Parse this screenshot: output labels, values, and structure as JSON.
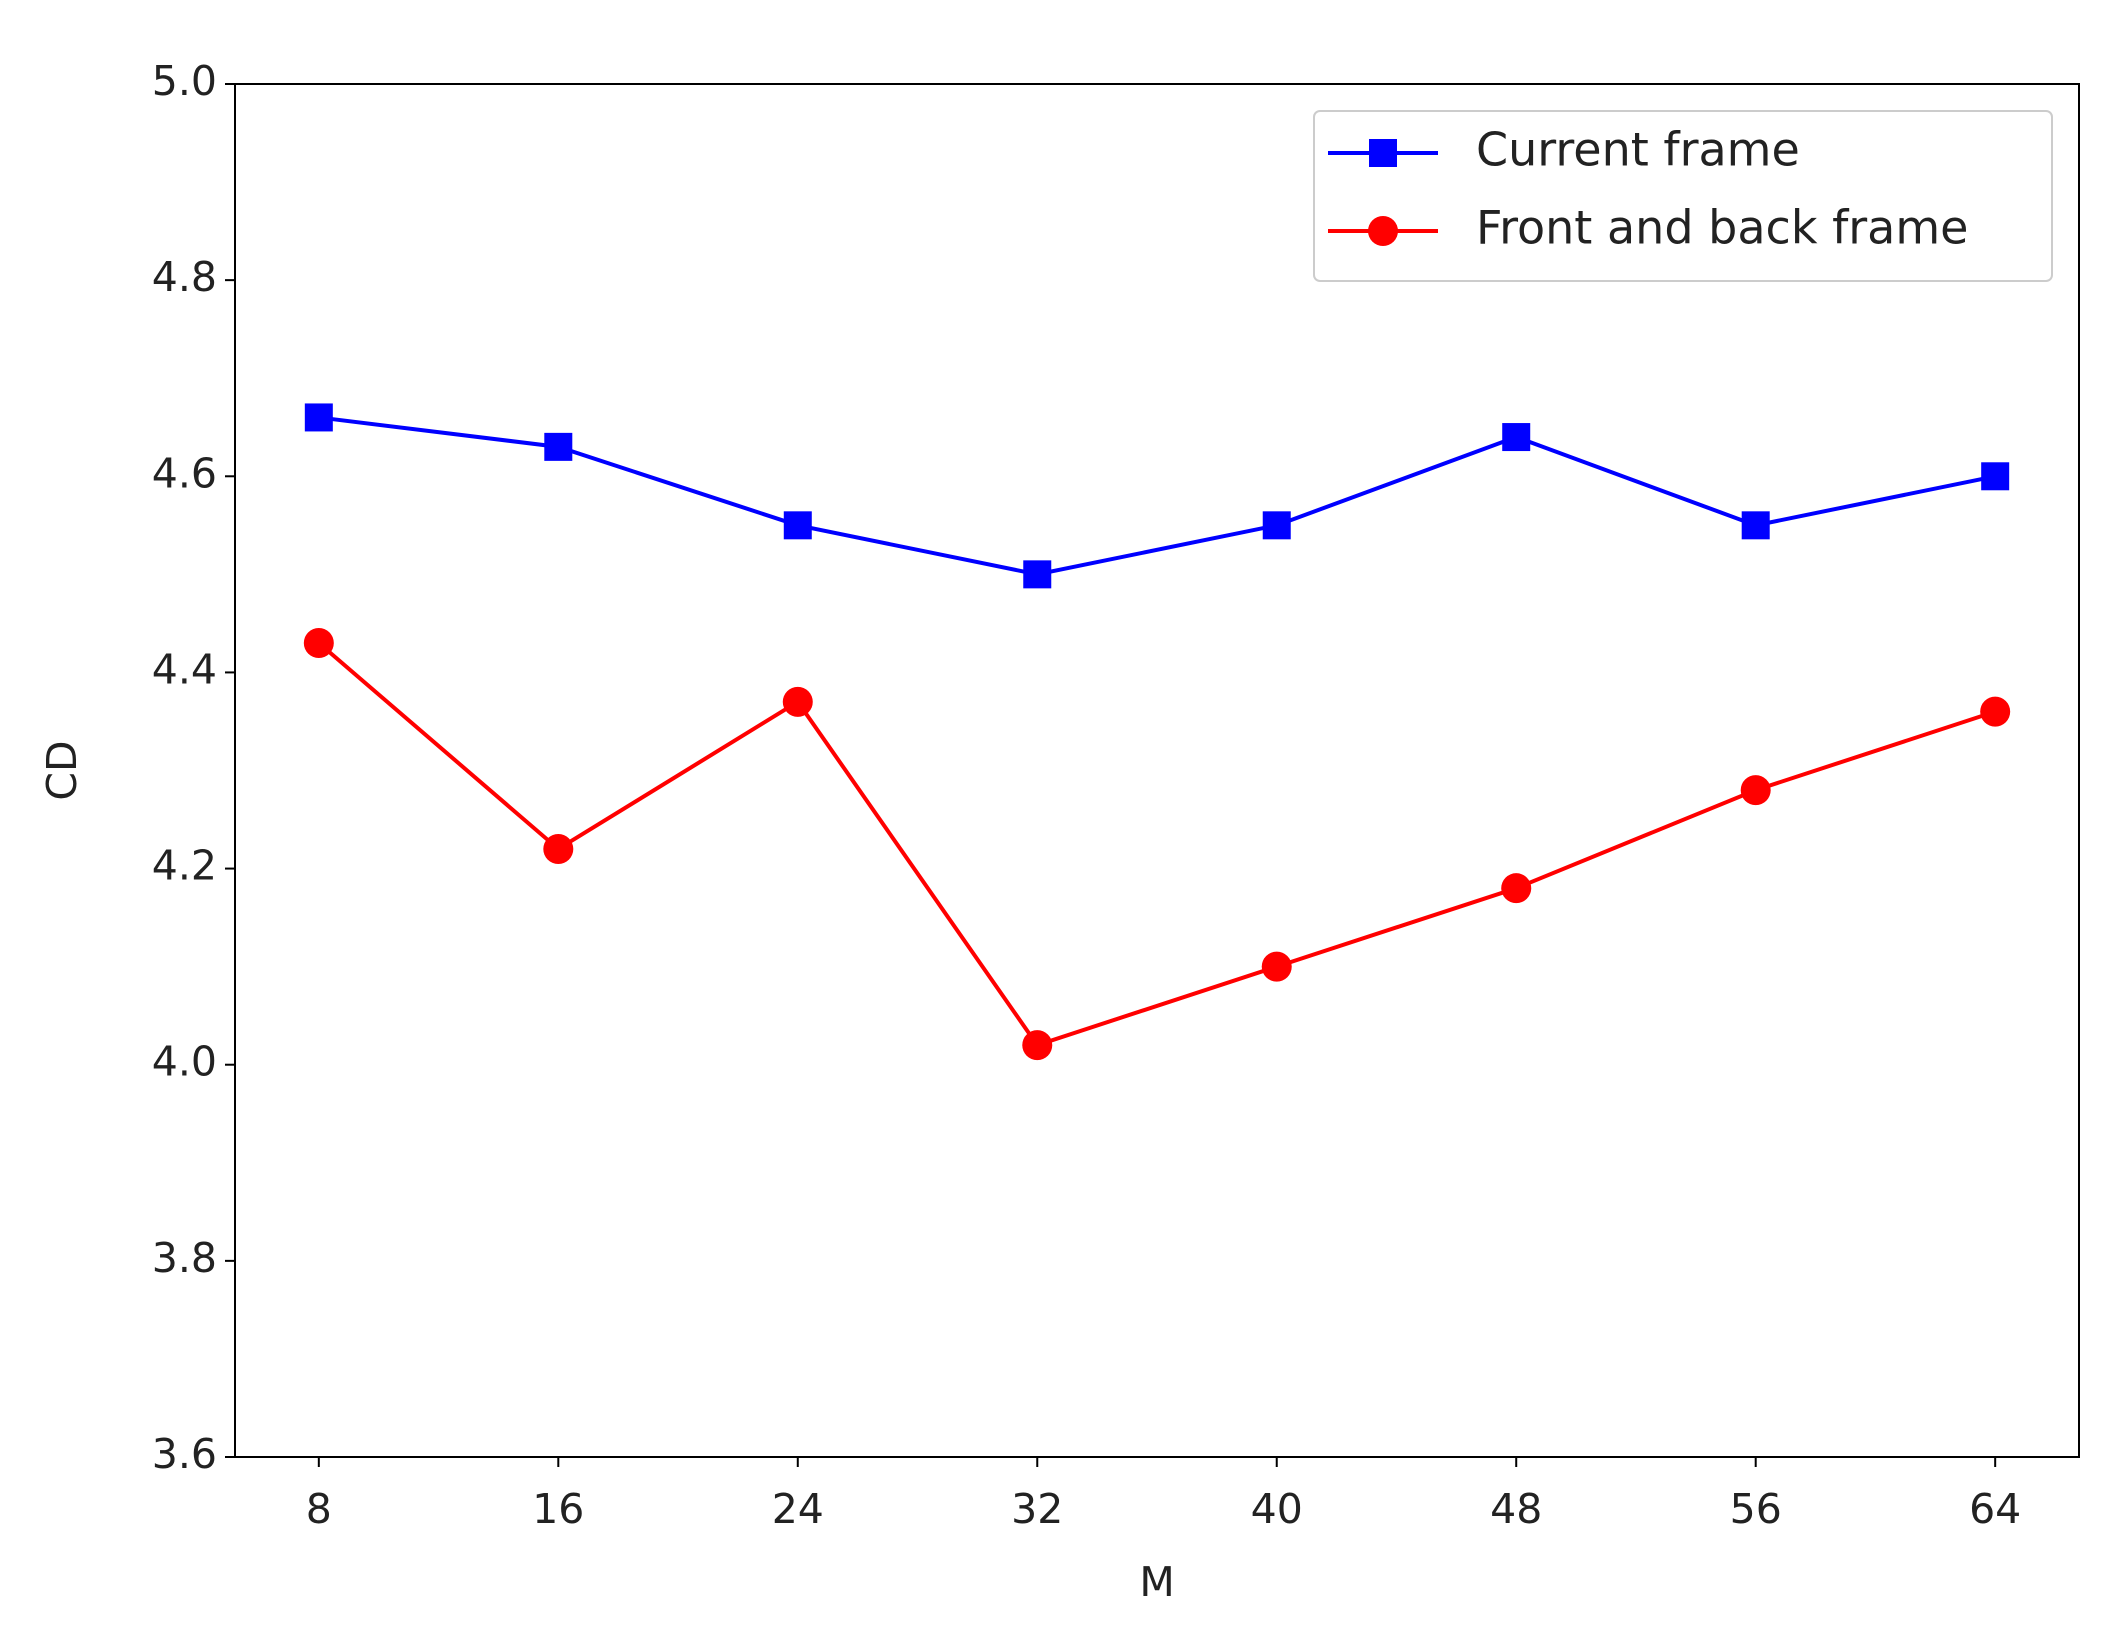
{
  "chart_data": {
    "type": "line",
    "xlabel": "M",
    "ylabel": "CD",
    "x": [
      8,
      16,
      24,
      32,
      40,
      48,
      56,
      64
    ],
    "series": [
      {
        "name": "Current frame",
        "color": "#0000ff",
        "marker": "square",
        "values": [
          4.66,
          4.63,
          4.55,
          4.5,
          4.55,
          4.64,
          4.55,
          4.6
        ]
      },
      {
        "name": "Front and back frame",
        "color": "#ff0000",
        "marker": "circle",
        "values": [
          4.43,
          4.22,
          4.37,
          4.02,
          4.1,
          4.18,
          4.28,
          4.36
        ]
      }
    ],
    "xlim": [
      5.2,
      66.8
    ],
    "xticks": [
      8,
      16,
      24,
      32,
      40,
      48,
      56,
      64
    ],
    "ylim": [
      3.6,
      5.0
    ],
    "yticks": [
      3.6,
      3.8,
      {
        "value": 4,
        "label": "4.0"
      },
      4.2,
      4.4,
      4.6,
      4.8,
      {
        "value": 5,
        "label": "5.0"
      }
    ],
    "grid": false,
    "legend": "upper right"
  }
}
